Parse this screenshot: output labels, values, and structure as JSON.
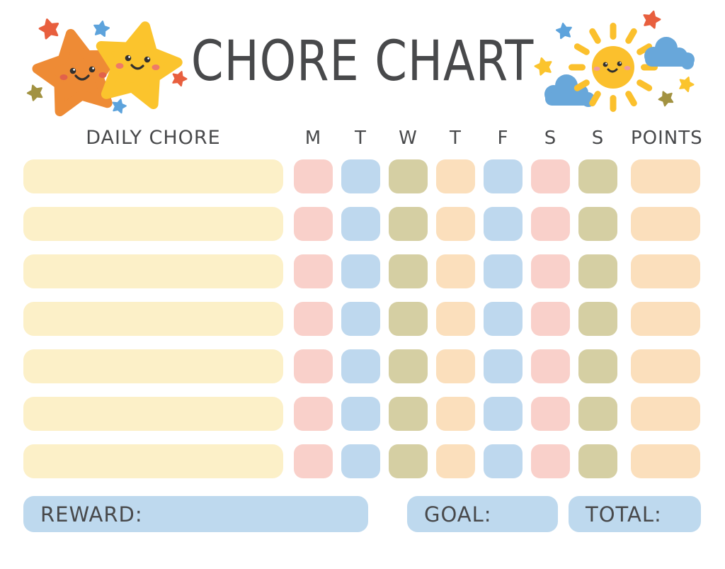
{
  "title": "CHORE CHART",
  "header": {
    "chore_column": "DAILY CHORE",
    "days": [
      "M",
      "T",
      "W",
      "T",
      "F",
      "S",
      "S"
    ],
    "points_column": "POINTS"
  },
  "table": {
    "row_count": 7,
    "day_cell_colors": [
      "pink",
      "blue",
      "olive",
      "peach",
      "blue",
      "pink",
      "olive"
    ],
    "points_cell_color": "peach"
  },
  "footer": {
    "reward_label": "REWARD:",
    "goal_label": "GOAL:",
    "total_label": "TOTAL:"
  },
  "colors": {
    "text": "#48494b",
    "chore_bar": "#fcf0c8",
    "pink": "#f9d0ca",
    "blue": "#bed8ee",
    "olive": "#d5cfa3",
    "peach": "#fbdfbc",
    "footer_box": "#bed9ee",
    "star_orange": "#ee8b35",
    "star_yellow": "#fbc42d",
    "sun": "#fbc02d",
    "cloud": "#68a7da",
    "accent_red": "#e85f3e",
    "accent_blue": "#5da3dc",
    "accent_olive": "#a29241",
    "accent_yellow": "#fbc42d",
    "face_dark": "#32302e",
    "eye_glint": "#ffffff",
    "cheek_orange_star": "#e2614a",
    "cheek_yellow_star": "#ee7a68",
    "cheek_sun": "#f09b9b"
  },
  "icons": {
    "left_decoration": "two-smiling-stars",
    "right_decoration": "smiling-sun-with-clouds"
  }
}
